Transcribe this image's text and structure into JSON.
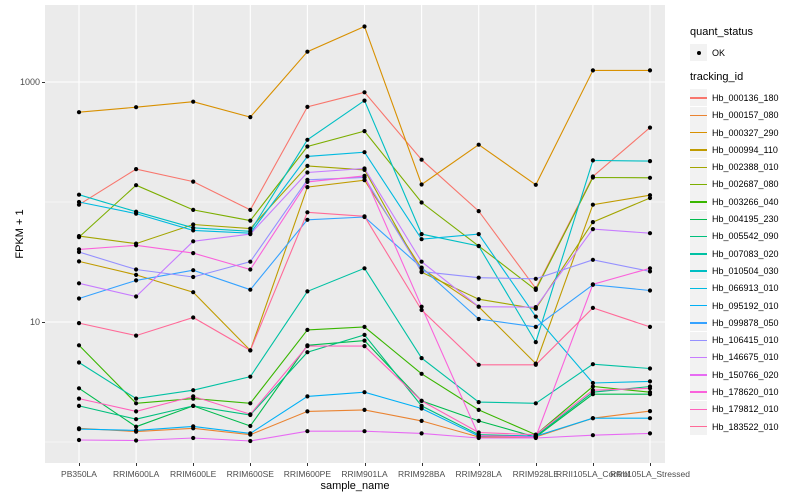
{
  "chart_data": {
    "type": "line",
    "xlabel": "sample_name",
    "ylabel": "FPKM + 1",
    "y_scale": "log10",
    "grid": true,
    "legend_position": "right",
    "y_ticks": [
      {
        "value": 10,
        "label": "10"
      },
      {
        "value": 1000,
        "label": "1000"
      }
    ],
    "y_minor_gridlines": [
      1,
      100
    ],
    "ylim": [
      0.68,
      4500
    ],
    "categories": [
      "PB350LA",
      "RRIM600LA",
      "RRIM600LE",
      "RRIM600SE",
      "RRIM600PE",
      "RRIM901LA",
      "RRIM928BA",
      "RRIM928LA",
      "RRIM928LE",
      "RRII105LA_Control",
      "RRII105LA_Stressed"
    ],
    "series": [
      {
        "tracking_id": "Hb_000136_180",
        "color": "#F8766D",
        "values": [
          95,
          188,
          148,
          86,
          620,
          820,
          225,
          84,
          19,
          163,
          417
        ]
      },
      {
        "tracking_id": "Hb_000157_080",
        "color": "#EA8331",
        "values": [
          1.3,
          1.22,
          1.3,
          1.15,
          1.8,
          1.85,
          1.5,
          1.1,
          1.1,
          1.58,
          1.81
        ]
      },
      {
        "tracking_id": "Hb_000327_290",
        "color": "#D89000",
        "values": [
          560,
          617,
          685,
          510,
          1790,
          2900,
          140,
          300,
          139,
          1250,
          1250
        ]
      },
      {
        "tracking_id": "Hb_000994_110",
        "color": "#C09B00",
        "values": [
          32,
          24.7,
          17.7,
          5.8,
          133,
          152,
          28,
          13.4,
          4.5,
          95,
          114
        ]
      },
      {
        "tracking_id": "Hb_002388_010",
        "color": "#A3A500",
        "values": [
          52,
          45,
          65,
          60,
          200,
          185,
          26,
          15.5,
          12.9,
          68,
          108
        ]
      },
      {
        "tracking_id": "Hb_002687_080",
        "color": "#7CAE00",
        "values": [
          51,
          138,
          86,
          70,
          290,
          390,
          99,
          43,
          18.5,
          160,
          159
        ]
      },
      {
        "tracking_id": "Hb_003266_040",
        "color": "#39B600",
        "values": [
          6.4,
          2.1,
          2.3,
          2.1,
          8.6,
          9.1,
          3.7,
          1.85,
          1.15,
          2.9,
          2.6
        ]
      },
      {
        "tracking_id": "Hb_004195_230",
        "color": "#00BB4E",
        "values": [
          2.8,
          1.34,
          2.0,
          1.36,
          6.4,
          7.0,
          2.2,
          1.5,
          1.1,
          2.5,
          2.5
        ]
      },
      {
        "tracking_id": "Hb_005542_090",
        "color": "#00BF7D",
        "values": [
          2.0,
          1.55,
          2.0,
          1.68,
          5.6,
          7.8,
          2.0,
          1.15,
          1.12,
          2.6,
          2.9
        ]
      },
      {
        "tracking_id": "Hb_007083_020",
        "color": "#00C1A3",
        "values": [
          4.6,
          2.3,
          2.7,
          3.5,
          18,
          28,
          5.0,
          2.15,
          2.1,
          4.45,
          4.1
        ]
      },
      {
        "tracking_id": "Hb_010504_030",
        "color": "#00BFC4",
        "values": [
          115,
          83,
          61,
          57,
          330,
          700,
          54,
          43,
          6.8,
          222,
          219
        ]
      },
      {
        "tracking_id": "Hb_066913_010",
        "color": "#00BAE0",
        "values": [
          100,
          80,
          58,
          55,
          240,
          260,
          49,
          54,
          11.1,
          3.1,
          3.2
        ]
      },
      {
        "tracking_id": "Hb_095192_010",
        "color": "#00B0F6",
        "values": [
          1.28,
          1.25,
          1.35,
          1.18,
          2.4,
          2.6,
          1.9,
          1.12,
          1.12,
          1.58,
          1.58
        ]
      },
      {
        "tracking_id": "Hb_099878_050",
        "color": "#35A2FF",
        "values": [
          15.7,
          22.2,
          27,
          18.6,
          71,
          75,
          28.4,
          10.6,
          9.1,
          20.4,
          18.3
        ]
      },
      {
        "tracking_id": "Hb_106415_010",
        "color": "#9590FF",
        "values": [
          38.3,
          27.4,
          23.7,
          31.8,
          153,
          160,
          26.3,
          23.4,
          22.9,
          33,
          26.4
        ]
      },
      {
        "tracking_id": "Hb_146675_010",
        "color": "#C77CFF",
        "values": [
          21,
          16.3,
          47,
          54,
          176,
          190,
          31.8,
          13.4,
          13.3,
          59.5,
          55
        ]
      },
      {
        "tracking_id": "Hb_150766_020",
        "color": "#E76BF3",
        "values": [
          1.04,
          1.03,
          1.08,
          1.02,
          1.23,
          1.23,
          1.18,
          1.08,
          1.08,
          1.14,
          1.18
        ]
      },
      {
        "tracking_id": "Hb_178620_010",
        "color": "#FA62DB",
        "values": [
          40.3,
          43.6,
          37.5,
          27.4,
          147,
          165,
          13.4,
          1.13,
          1.1,
          20.6,
          28
        ]
      },
      {
        "tracking_id": "Hb_179812_010",
        "color": "#FF62BC",
        "values": [
          2.3,
          1.8,
          2.4,
          1.7,
          6.3,
          6.3,
          2.2,
          1.2,
          1.15,
          2.7,
          2.8
        ]
      },
      {
        "tracking_id": "Hb_183522_010",
        "color": "#FF6A98",
        "values": [
          9.8,
          7.7,
          10.9,
          5.8,
          82,
          76,
          12.6,
          4.4,
          4.4,
          13.1,
          9.1
        ]
      }
    ],
    "legend": {
      "quant_status_title": "quant_status",
      "quant_status_items": [
        {
          "label": "OK",
          "marker": "point"
        }
      ],
      "tracking_title": "tracking_id"
    },
    "style": {
      "panel_bg": "#EBEBEB",
      "gridline_color": "#FFFFFF",
      "point_color": "#000000",
      "tick_text_color": "#4D4D4D",
      "axis_title_color": "#000000",
      "legend_key_bg": "#F2F2F2"
    }
  }
}
